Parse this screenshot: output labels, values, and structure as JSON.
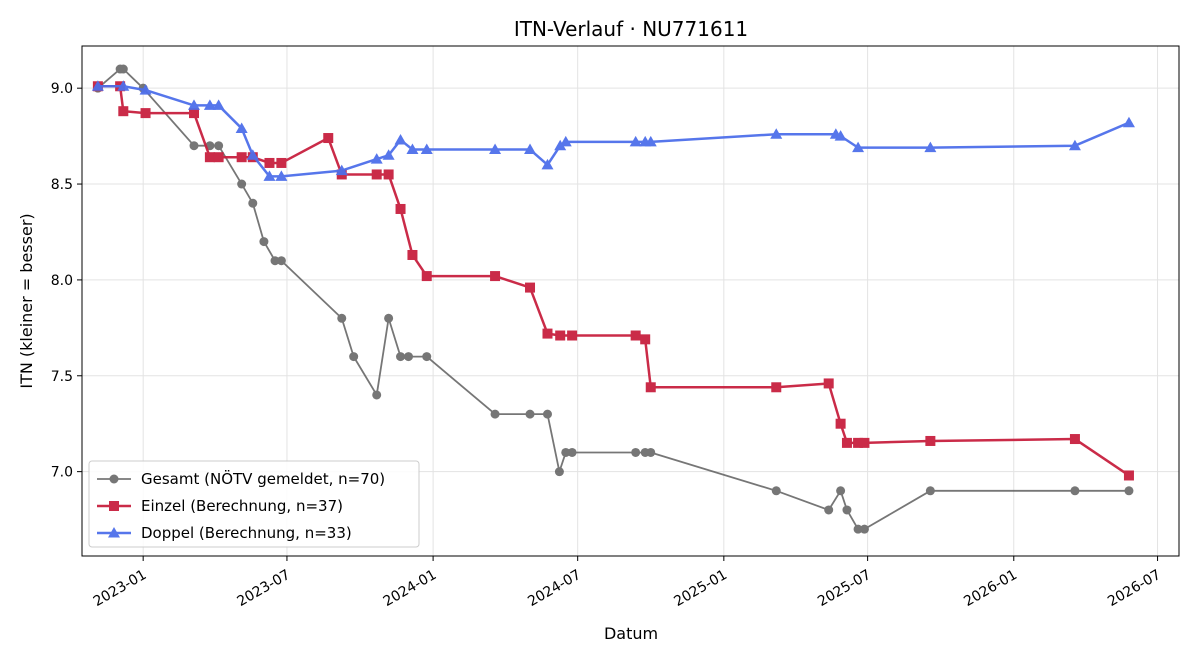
{
  "chart_data": {
    "type": "line",
    "title": "ITN-Verlauf · NU771611",
    "xlabel": "Datum",
    "ylabel": "ITN  (kleiner = besser)",
    "x_type": "date",
    "xlim": [
      "2022-10-16",
      "2026-07-28"
    ],
    "ylim": [
      6.56,
      9.22
    ],
    "x_ticks": [
      "2023-01",
      "2023-07",
      "2024-01",
      "2024-07",
      "2025-01",
      "2025-07",
      "2026-01",
      "2026-07"
    ],
    "x_tick_dates": [
      "2023-01-01",
      "2023-07-01",
      "2024-01-01",
      "2024-07-01",
      "2025-01-01",
      "2025-07-01",
      "2026-01-01",
      "2026-07-01"
    ],
    "y_ticks": [
      7.0,
      7.5,
      8.0,
      8.5,
      9.0
    ],
    "grid": true,
    "legend_position": "lower-left",
    "series": [
      {
        "name": "Gesamt (NÖTV gemeldet, n=70)",
        "color": "#555555",
        "marker": "circle",
        "x": [
          "2022-11-05",
          "2022-12-03",
          "2022-12-07",
          "2023-01-01",
          "2023-03-06",
          "2023-03-26",
          "2023-04-06",
          "2023-05-05",
          "2023-05-19",
          "2023-06-02",
          "2023-06-16",
          "2023-06-24",
          "2023-09-08",
          "2023-09-23",
          "2023-10-22",
          "2023-11-06",
          "2023-11-21",
          "2023-12-01",
          "2023-12-24",
          "2024-03-19",
          "2024-05-02",
          "2024-05-24",
          "2024-06-08",
          "2024-06-16",
          "2024-06-24",
          "2024-09-12",
          "2024-09-24",
          "2024-10-01",
          "2025-03-08",
          "2025-05-13",
          "2025-05-28",
          "2025-06-05",
          "2025-06-19",
          "2025-06-27",
          "2025-09-18",
          "2026-03-19",
          "2026-05-26"
        ],
        "y": [
          9.0,
          9.1,
          9.1,
          9.0,
          8.7,
          8.7,
          8.7,
          8.5,
          8.4,
          8.2,
          8.1,
          8.1,
          7.8,
          7.6,
          7.4,
          7.8,
          7.6,
          7.6,
          7.6,
          7.3,
          7.3,
          7.3,
          7.0,
          7.1,
          7.1,
          7.1,
          7.1,
          7.1,
          6.9,
          6.8,
          6.9,
          6.8,
          6.7,
          6.7,
          6.9,
          6.9,
          6.9
        ]
      },
      {
        "name": "Einzel (Berechnung, n=37)",
        "color": "#c8203f",
        "marker": "square",
        "x": [
          "2022-11-05",
          "2022-12-03",
          "2022-12-07",
          "2023-01-04",
          "2023-03-06",
          "2023-03-26",
          "2023-04-06",
          "2023-05-05",
          "2023-05-19",
          "2023-06-09",
          "2023-06-24",
          "2023-08-22",
          "2023-09-08",
          "2023-10-22",
          "2023-11-06",
          "2023-11-21",
          "2023-12-06",
          "2023-12-24",
          "2024-03-19",
          "2024-05-02",
          "2024-05-24",
          "2024-06-09",
          "2024-06-24",
          "2024-09-12",
          "2024-09-24",
          "2024-10-01",
          "2025-03-08",
          "2025-05-13",
          "2025-05-28",
          "2025-06-05",
          "2025-06-19",
          "2025-06-27",
          "2025-09-18",
          "2026-03-19",
          "2026-05-26"
        ],
        "y": [
          9.01,
          9.01,
          8.88,
          8.87,
          8.87,
          8.64,
          8.64,
          8.64,
          8.64,
          8.61,
          8.61,
          8.74,
          8.55,
          8.55,
          8.55,
          8.37,
          8.13,
          8.02,
          8.02,
          7.96,
          7.72,
          7.71,
          7.71,
          7.71,
          7.69,
          7.44,
          7.44,
          7.46,
          7.25,
          7.15,
          7.15,
          7.15,
          7.16,
          7.17,
          6.98
        ]
      },
      {
        "name": "Doppel (Berechnung, n=33)",
        "color": "#4e6fea",
        "marker": "triangle",
        "x": [
          "2022-11-05",
          "2022-12-07",
          "2023-01-04",
          "2023-03-06",
          "2023-03-26",
          "2023-04-06",
          "2023-05-05",
          "2023-05-19",
          "2023-06-09",
          "2023-06-24",
          "2023-09-08",
          "2023-10-22",
          "2023-11-06",
          "2023-11-21",
          "2023-12-06",
          "2023-12-24",
          "2024-03-19",
          "2024-05-02",
          "2024-05-24",
          "2024-06-09",
          "2024-06-16",
          "2024-09-12",
          "2024-09-24",
          "2024-10-01",
          "2025-03-08",
          "2025-05-22",
          "2025-05-28",
          "2025-06-19",
          "2025-09-18",
          "2026-03-19",
          "2026-05-26"
        ],
        "y": [
          9.01,
          9.01,
          8.99,
          8.91,
          8.91,
          8.91,
          8.79,
          8.65,
          8.54,
          8.54,
          8.57,
          8.63,
          8.65,
          8.73,
          8.68,
          8.68,
          8.68,
          8.68,
          8.6,
          8.7,
          8.72,
          8.72,
          8.72,
          8.72,
          8.76,
          8.76,
          8.75,
          8.69,
          8.69,
          8.7,
          8.82
        ]
      }
    ]
  }
}
